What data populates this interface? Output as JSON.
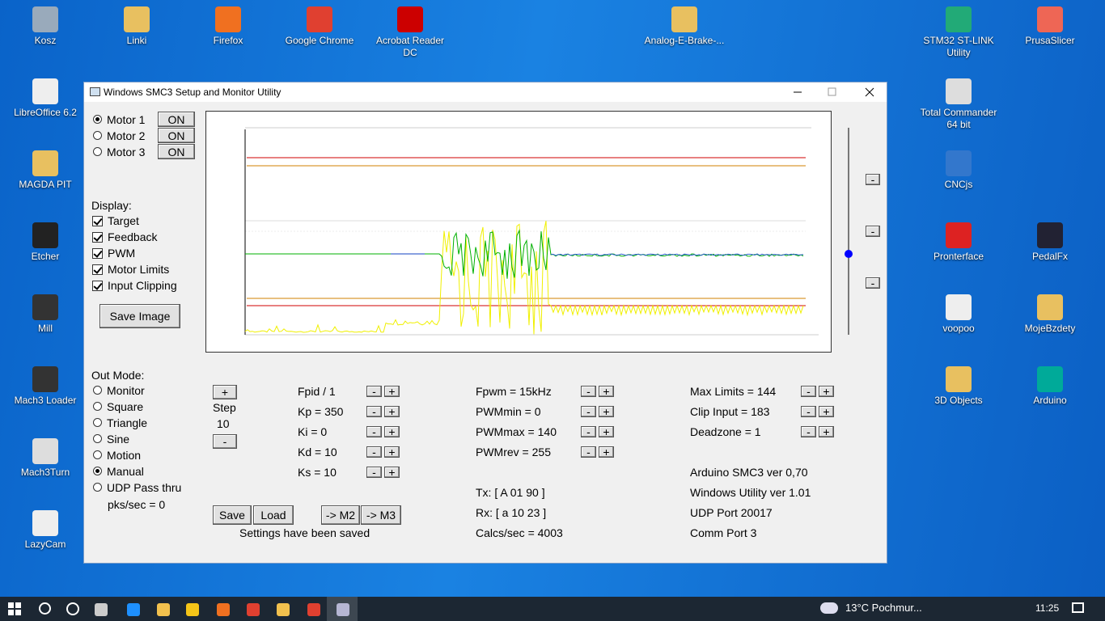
{
  "desktop": {
    "icons": [
      {
        "label": "Kosz"
      },
      {
        "label": "Linki"
      },
      {
        "label": "Firefox"
      },
      {
        "label": "Google Chrome"
      },
      {
        "label": "Acrobat Reader DC"
      },
      {
        "label": "Analog-E-Brake-..."
      },
      {
        "label": "STM32 ST-LINK Utility"
      },
      {
        "label": "PrusaSlicer"
      },
      {
        "label": "LibreOffice 6.2"
      },
      {
        "label": "Total Commander 64 bit"
      },
      {
        "label": "MAGDA PIT"
      },
      {
        "label": "CNCjs"
      },
      {
        "label": "Etcher"
      },
      {
        "label": "Pronterface"
      },
      {
        "label": "PedalFx"
      },
      {
        "label": "Mill"
      },
      {
        "label": "voopoo"
      },
      {
        "label": "MojeBzdety"
      },
      {
        "label": "Mach3 Loader"
      },
      {
        "label": "3D Objects"
      },
      {
        "label": "Arduino"
      },
      {
        "label": "Mach3Turn"
      },
      {
        "label": "LazyCam"
      }
    ]
  },
  "window": {
    "title": "Windows SMC3 Setup and Monitor Utility",
    "motors": [
      {
        "label": "Motor 1",
        "button": "ON"
      },
      {
        "label": "Motor 2",
        "button": "ON"
      },
      {
        "label": "Motor 3",
        "button": "ON"
      }
    ],
    "display": {
      "label": "Display:",
      "options": [
        "Target",
        "Feedback",
        "PWM",
        "Motor Limits",
        "Input Clipping"
      ]
    },
    "save_image": "Save Image",
    "out_mode": {
      "label": "Out Mode:",
      "options": [
        "Monitor",
        "Square",
        "Triangle",
        "Sine",
        "Motion",
        "Manual",
        "UDP Pass thru"
      ],
      "pks": "pks/sec = 0"
    },
    "controls": {
      "plus": "+",
      "minus": "-"
    },
    "step": {
      "label": "Step",
      "value": "10"
    },
    "pid": [
      "Fpid / 1",
      "Kp = 350",
      "Ki = 0",
      "Kd = 10",
      "Ks = 10"
    ],
    "pwm": [
      "Fpwm = 15kHz",
      "PWMmin = 0",
      "PWMmax = 140",
      "PWMrev = 255"
    ],
    "limits": [
      "Max Limits = 144",
      "Clip Input = 183",
      "Deadzone = 1"
    ],
    "comm": [
      "Tx: [ A 01 90 ]",
      "Rx: [ a 10 23 ]",
      "Calcs/sec = 4003"
    ],
    "info": [
      "Arduino SMC3 ver 0,70",
      "Windows Utility ver 1.01",
      "UDP Port 20017",
      "Comm Port 3"
    ],
    "buttons": [
      "Save",
      "Load",
      "-> M2",
      "-> M3"
    ],
    "status": "Settings have been saved"
  },
  "taskbar": {
    "weather": "13°C Pochmur...",
    "time": "11:25"
  }
}
